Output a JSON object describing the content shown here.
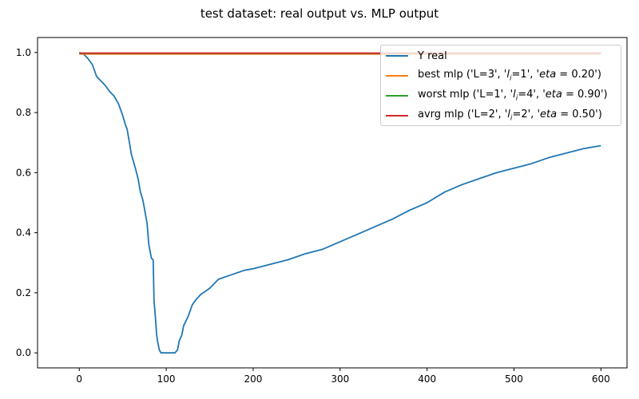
{
  "title": "test dataset: real output vs. MLP output",
  "chart_data": {
    "type": "line",
    "title": "test dataset: real output vs. MLP output",
    "xlabel": "",
    "ylabel": "",
    "xlim": [
      -48,
      630
    ],
    "ylim": [
      -0.05,
      1.05
    ],
    "xticks": [
      0,
      100,
      200,
      300,
      400,
      500,
      600
    ],
    "yticks": [
      0.0,
      0.2,
      0.4,
      0.6,
      0.8,
      1.0
    ],
    "xtick_labels": [
      "0",
      "100",
      "200",
      "300",
      "400",
      "500",
      "600"
    ],
    "ytick_labels": [
      "0.0",
      "0.2",
      "0.4",
      "0.6",
      "0.8",
      "1.0"
    ],
    "grid": false,
    "legend_position": "top-right",
    "series": [
      {
        "name": "Y real",
        "color": "#1f77b4",
        "x": [
          0,
          5,
          10,
          15,
          20,
          25,
          30,
          35,
          40,
          45,
          50,
          53,
          55,
          58,
          60,
          62,
          65,
          68,
          70,
          73,
          75,
          78,
          80,
          83,
          85,
          86,
          87,
          88,
          89,
          90,
          92,
          94,
          96,
          98,
          100,
          105,
          110,
          113,
          115,
          118,
          120,
          125,
          130,
          135,
          140,
          145,
          150,
          160,
          170,
          180,
          190,
          200,
          220,
          240,
          260,
          280,
          300,
          320,
          340,
          360,
          380,
          400,
          420,
          440,
          460,
          480,
          500,
          520,
          540,
          560,
          580,
          600
        ],
        "y": [
          1.0,
          0.995,
          0.98,
          0.96,
          0.92,
          0.905,
          0.89,
          0.87,
          0.855,
          0.83,
          0.79,
          0.76,
          0.745,
          0.695,
          0.66,
          0.64,
          0.61,
          0.575,
          0.54,
          0.51,
          0.48,
          0.43,
          0.36,
          0.315,
          0.31,
          0.17,
          0.14,
          0.1,
          0.06,
          0.04,
          0.01,
          0.0,
          0.0,
          0.0,
          0.0,
          0.0,
          0.0,
          0.01,
          0.04,
          0.06,
          0.09,
          0.12,
          0.16,
          0.18,
          0.195,
          0.205,
          0.215,
          0.245,
          0.255,
          0.265,
          0.275,
          0.28,
          0.295,
          0.31,
          0.33,
          0.345,
          0.37,
          0.395,
          0.42,
          0.445,
          0.475,
          0.5,
          0.535,
          0.56,
          0.58,
          0.6,
          0.615,
          0.63,
          0.65,
          0.665,
          0.68,
          0.69
        ]
      },
      {
        "name": "best mlp ('L=3', '$l_i$=1', '$eta=0.20$')",
        "color": "#ff7f0e",
        "x": [
          0,
          600
        ],
        "y": [
          0.995,
          0.995
        ]
      },
      {
        "name": "worst mlp ('L=1', '$l_i$=4', '$eta=0.90$')",
        "color": "#2ca02c",
        "x": [
          0,
          600
        ],
        "y": [
          0.997,
          0.997
        ]
      },
      {
        "name": "avrg mlp ('L=2', '$l_i$=2', '$eta=0.50$')",
        "color": "#d62728",
        "x": [
          0,
          600
        ],
        "y": [
          0.998,
          0.998
        ]
      }
    ]
  },
  "legend": {
    "items": [
      {
        "prefix": "Y real",
        "li": "",
        "mid": "",
        "eta": "",
        "suffix": ""
      },
      {
        "prefix": "best mlp ('L=3', '",
        "li": "l",
        "mid": "=1', '",
        "eta": "eta",
        "suffix": " = 0.20')"
      },
      {
        "prefix": "worst mlp ('L=1', '",
        "li": "l",
        "mid": "=4', '",
        "eta": "eta",
        "suffix": " = 0.90')"
      },
      {
        "prefix": "avrg mlp ('L=2', '",
        "li": "l",
        "mid": "=2', '",
        "eta": "eta",
        "suffix": " = 0.50')"
      }
    ]
  }
}
